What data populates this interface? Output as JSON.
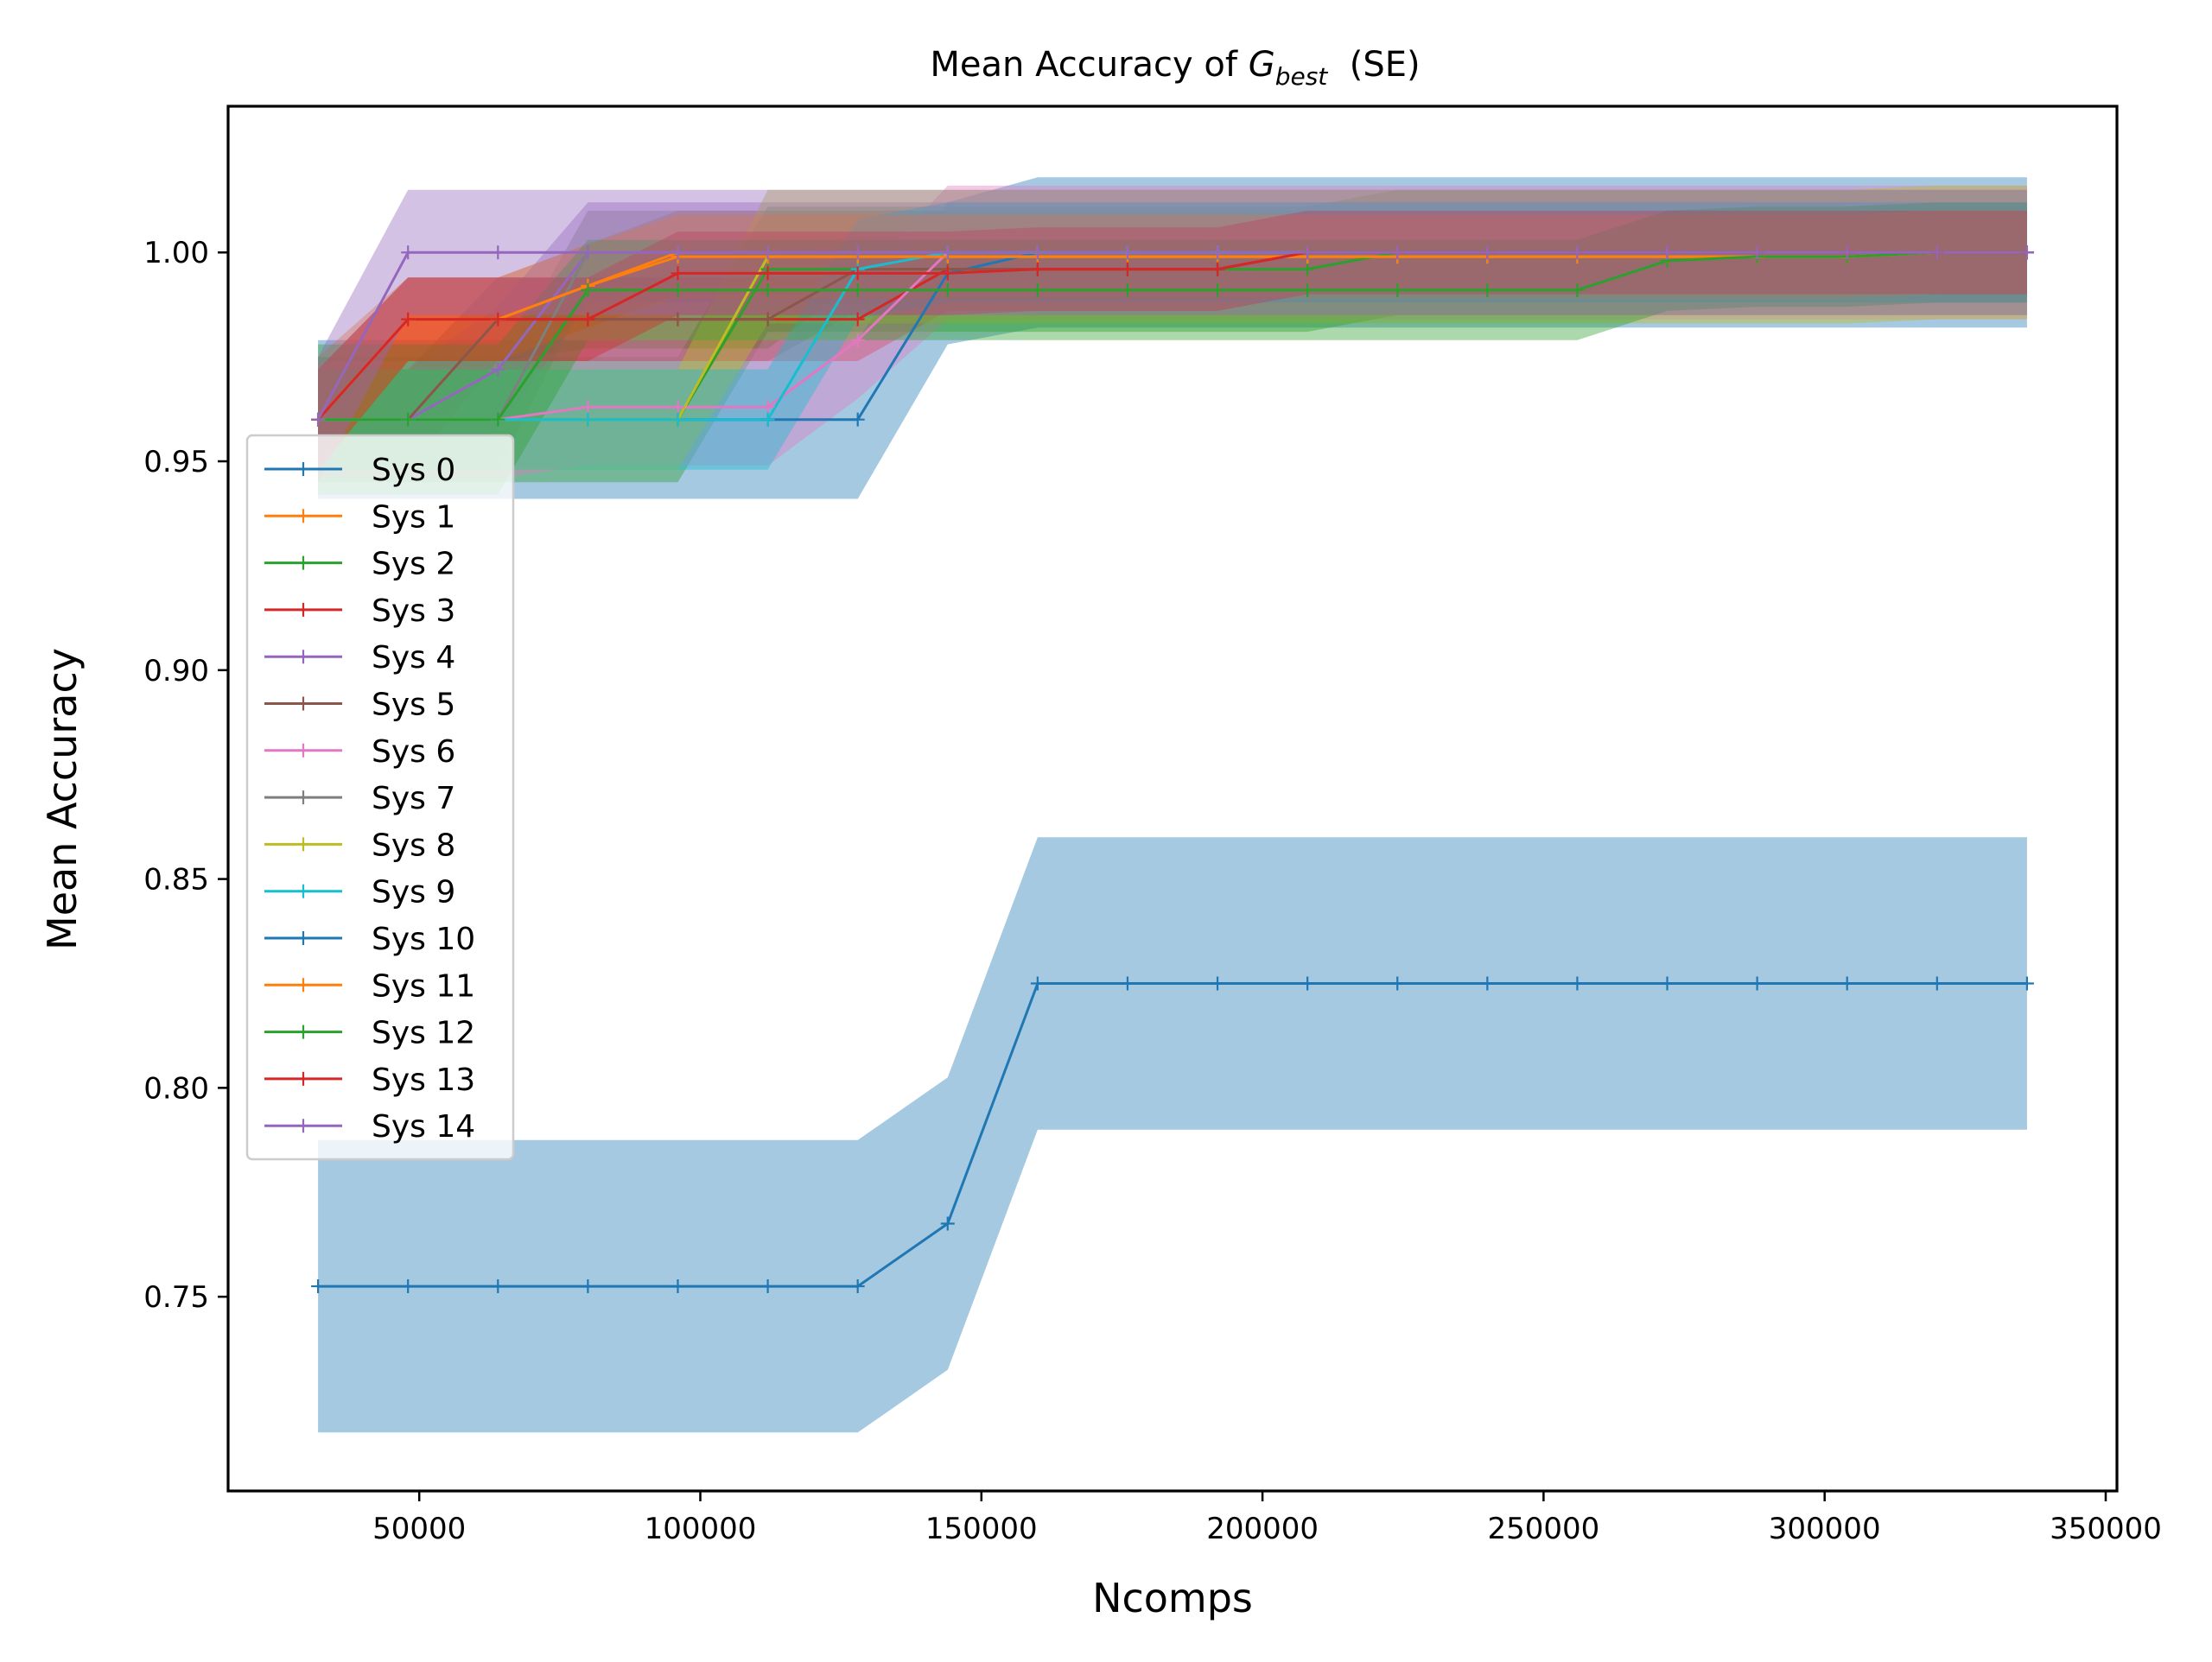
{
  "chart_data": {
    "type": "line",
    "title_main": "Mean Accuracy of ",
    "title_g": "G",
    "title_sub": "best",
    "title_tail": "  (SE)",
    "xlabel": "Ncomps",
    "ylabel": "Mean Accuracy",
    "xlim": [
      16000,
      352000
    ],
    "ylim": [
      0.7035,
      1.035
    ],
    "xticks": [
      50000,
      100000,
      150000,
      200000,
      250000,
      300000,
      350000
    ],
    "xtick_labels": [
      "50000",
      "100000",
      "150000",
      "200000",
      "250000",
      "300000",
      "350000"
    ],
    "yticks": [
      0.75,
      0.8,
      0.85,
      0.9,
      0.95,
      1.0
    ],
    "ytick_labels": [
      "0.75",
      "0.80",
      "0.85",
      "0.90",
      "0.95",
      "1.00"
    ],
    "grid": false,
    "legend_position": "center-left",
    "x": [
      32000,
      48000,
      64000,
      80000,
      96000,
      112000,
      128000,
      144000,
      160000,
      176000,
      192000,
      208000,
      224000,
      240000,
      256000,
      272000,
      288000,
      304000,
      320000,
      336000
    ],
    "series": [
      {
        "name": "Sys 0",
        "color": "#1f77b4",
        "values": [
          0.96,
          0.96,
          0.96,
          0.96,
          0.96,
          0.96,
          0.96,
          0.995,
          1.0,
          1.0,
          1.0,
          1.0,
          1.0,
          1.0,
          1.0,
          1.0,
          1.0,
          1.0,
          1.0,
          1.0
        ],
        "err": [
          0.019,
          0.019,
          0.019,
          0.019,
          0.019,
          0.019,
          0.019,
          0.017,
          0.018,
          0.018,
          0.018,
          0.018,
          0.018,
          0.018,
          0.018,
          0.018,
          0.018,
          0.018,
          0.018,
          0.018
        ]
      },
      {
        "name": "Sys 1",
        "color": "#ff7f0e",
        "values": [
          0.96,
          0.984,
          0.984,
          0.992,
          1.0,
          1.0,
          1.0,
          1.0,
          1.0,
          1.0,
          1.0,
          1.0,
          1.0,
          1.0,
          1.0,
          1.0,
          1.0,
          1.0,
          1.0,
          1.0
        ],
        "err": [
          0.015,
          0.01,
          0.01,
          0.01,
          0.01,
          0.01,
          0.01,
          0.01,
          0.01,
          0.01,
          0.01,
          0.01,
          0.01,
          0.01,
          0.01,
          0.01,
          0.01,
          0.01,
          0.01,
          0.01
        ]
      },
      {
        "name": "Sys 2",
        "color": "#2ca02c",
        "values": [
          0.96,
          0.96,
          0.96,
          0.96,
          0.96,
          0.996,
          0.996,
          0.996,
          0.996,
          0.996,
          0.996,
          0.996,
          1.0,
          1.0,
          1.0,
          1.0,
          1.0,
          1.0,
          1.0,
          1.0
        ],
        "err": [
          0.015,
          0.015,
          0.015,
          0.015,
          0.015,
          0.015,
          0.015,
          0.015,
          0.015,
          0.015,
          0.015,
          0.015,
          0.015,
          0.015,
          0.015,
          0.015,
          0.015,
          0.015,
          0.015,
          0.015
        ]
      },
      {
        "name": "Sys 3",
        "color": "#d62728",
        "values": [
          0.96,
          0.984,
          0.984,
          0.984,
          0.984,
          0.984,
          0.984,
          0.996,
          0.996,
          0.996,
          0.996,
          1.0,
          1.0,
          1.0,
          1.0,
          1.0,
          1.0,
          1.0,
          1.0,
          1.0
        ],
        "err": [
          0.012,
          0.01,
          0.01,
          0.01,
          0.01,
          0.01,
          0.01,
          0.01,
          0.01,
          0.01,
          0.01,
          0.01,
          0.01,
          0.01,
          0.01,
          0.01,
          0.01,
          0.01,
          0.01,
          0.01
        ]
      },
      {
        "name": "Sys 4",
        "color": "#9467bd",
        "values": [
          0.96,
          0.96,
          0.972,
          1.0,
          1.0,
          1.0,
          1.0,
          1.0,
          1.0,
          1.0,
          1.0,
          1.0,
          1.0,
          1.0,
          1.0,
          1.0,
          1.0,
          1.0,
          1.0,
          1.0
        ],
        "err": [
          0.012,
          0.012,
          0.015,
          0.012,
          0.012,
          0.012,
          0.012,
          0.012,
          0.012,
          0.012,
          0.012,
          0.012,
          0.012,
          0.012,
          0.012,
          0.012,
          0.012,
          0.012,
          0.012,
          0.012
        ]
      },
      {
        "name": "Sys 5",
        "color": "#8c564b",
        "values": [
          0.96,
          0.96,
          0.984,
          0.984,
          0.984,
          0.984,
          0.996,
          0.996,
          0.996,
          0.996,
          0.996,
          1.0,
          1.0,
          1.0,
          1.0,
          1.0,
          1.0,
          1.0,
          1.0,
          1.0
        ],
        "err": [
          0.012,
          0.012,
          0.01,
          0.01,
          0.01,
          0.01,
          0.01,
          0.01,
          0.01,
          0.01,
          0.01,
          0.01,
          0.01,
          0.01,
          0.01,
          0.01,
          0.01,
          0.01,
          0.01,
          0.01
        ]
      },
      {
        "name": "Sys 6",
        "color": "#e377c2",
        "values": [
          0.96,
          0.96,
          0.96,
          0.963,
          0.963,
          0.963,
          0.979,
          1.0,
          1.0,
          1.0,
          1.0,
          1.0,
          1.0,
          1.0,
          1.0,
          1.0,
          1.0,
          1.0,
          1.0,
          1.0
        ],
        "err": [
          0.014,
          0.014,
          0.014,
          0.014,
          0.014,
          0.014,
          0.014,
          0.016,
          0.016,
          0.016,
          0.016,
          0.016,
          0.016,
          0.016,
          0.016,
          0.016,
          0.016,
          0.016,
          0.016,
          0.016
        ]
      },
      {
        "name": "Sys 7",
        "color": "#7f7f7f",
        "values": [
          0.96,
          0.96,
          0.96,
          1.0,
          1.0,
          1.0,
          1.0,
          1.0,
          1.0,
          1.0,
          1.0,
          1.0,
          1.0,
          1.0,
          1.0,
          1.0,
          1.0,
          1.0,
          1.0,
          1.0
        ],
        "err": [
          0.012,
          0.012,
          0.012,
          0.01,
          0.01,
          0.01,
          0.01,
          0.01,
          0.01,
          0.01,
          0.01,
          0.01,
          0.01,
          0.01,
          0.01,
          0.01,
          0.01,
          0.01,
          0.01,
          0.01
        ]
      },
      {
        "name": "Sys 8",
        "color": "#bcbd22",
        "values": [
          0.96,
          0.96,
          0.96,
          0.96,
          0.96,
          0.999,
          0.999,
          0.999,
          0.999,
          0.999,
          0.999,
          0.999,
          0.999,
          0.999,
          0.999,
          0.999,
          0.999,
          0.999,
          1.0,
          1.0
        ],
        "err": [
          0.012,
          0.012,
          0.012,
          0.012,
          0.012,
          0.016,
          0.016,
          0.016,
          0.016,
          0.016,
          0.016,
          0.016,
          0.016,
          0.016,
          0.016,
          0.016,
          0.016,
          0.016,
          0.016,
          0.016
        ]
      },
      {
        "name": "Sys 9",
        "color": "#17becf",
        "values": [
          0.96,
          0.96,
          0.96,
          0.96,
          0.96,
          0.96,
          0.996,
          1.0,
          1.0,
          1.0,
          1.0,
          1.0,
          1.0,
          1.0,
          1.0,
          1.0,
          1.0,
          1.0,
          1.0,
          1.0
        ],
        "err": [
          0.012,
          0.012,
          0.012,
          0.012,
          0.012,
          0.012,
          0.012,
          0.012,
          0.012,
          0.012,
          0.012,
          0.012,
          0.012,
          0.012,
          0.012,
          0.012,
          0.012,
          0.012,
          0.012,
          0.012
        ]
      },
      {
        "name": "Sys 10",
        "color": "#1f77b4",
        "values": [
          0.7525,
          0.7525,
          0.7525,
          0.7525,
          0.7525,
          0.7525,
          0.7525,
          0.7675,
          0.825,
          0.825,
          0.825,
          0.825,
          0.825,
          0.825,
          0.825,
          0.825,
          0.825,
          0.825,
          0.825,
          0.825
        ],
        "err": [
          0.035,
          0.035,
          0.035,
          0.035,
          0.035,
          0.035,
          0.035,
          0.035,
          0.035,
          0.035,
          0.035,
          0.035,
          0.035,
          0.035,
          0.035,
          0.035,
          0.035,
          0.035,
          0.035,
          0.035
        ]
      },
      {
        "name": "Sys 11",
        "color": "#ff7f0e",
        "values": [
          0.96,
          0.984,
          0.984,
          0.992,
          0.999,
          0.999,
          0.999,
          0.999,
          0.999,
          0.999,
          0.999,
          0.999,
          0.999,
          0.999,
          0.999,
          0.999,
          0.999,
          0.999,
          1.0,
          1.0
        ],
        "err": [
          0.012,
          0.01,
          0.01,
          0.01,
          0.01,
          0.01,
          0.01,
          0.01,
          0.01,
          0.01,
          0.01,
          0.01,
          0.01,
          0.01,
          0.01,
          0.01,
          0.01,
          0.01,
          0.01,
          0.01
        ]
      },
      {
        "name": "Sys 12",
        "color": "#2ca02c",
        "values": [
          0.96,
          0.96,
          0.96,
          0.991,
          0.991,
          0.991,
          0.991,
          0.991,
          0.991,
          0.991,
          0.991,
          0.991,
          0.991,
          0.991,
          0.991,
          0.998,
          0.999,
          0.999,
          1.0,
          1.0
        ],
        "err": [
          0.018,
          0.018,
          0.018,
          0.012,
          0.012,
          0.012,
          0.012,
          0.012,
          0.012,
          0.012,
          0.012,
          0.012,
          0.012,
          0.012,
          0.012,
          0.012,
          0.012,
          0.012,
          0.012,
          0.012
        ]
      },
      {
        "name": "Sys 13",
        "color": "#d62728",
        "values": [
          0.96,
          0.984,
          0.984,
          0.984,
          0.995,
          0.995,
          0.995,
          0.995,
          0.996,
          0.996,
          0.996,
          1.0,
          1.0,
          1.0,
          1.0,
          1.0,
          1.0,
          1.0,
          1.0,
          1.0
        ],
        "err": [
          0.012,
          0.01,
          0.01,
          0.01,
          0.01,
          0.01,
          0.01,
          0.01,
          0.01,
          0.01,
          0.01,
          0.01,
          0.01,
          0.01,
          0.01,
          0.01,
          0.01,
          0.01,
          0.01,
          0.01
        ]
      },
      {
        "name": "Sys 14",
        "color": "#9467bd",
        "values": [
          0.96,
          1.0,
          1.0,
          1.0,
          1.0,
          1.0,
          1.0,
          1.0,
          1.0,
          1.0,
          1.0,
          1.0,
          1.0,
          1.0,
          1.0,
          1.0,
          1.0,
          1.0,
          1.0,
          1.0
        ],
        "err": [
          0.015,
          0.015,
          0.015,
          0.015,
          0.015,
          0.015,
          0.015,
          0.015,
          0.015,
          0.015,
          0.015,
          0.015,
          0.015,
          0.015,
          0.015,
          0.015,
          0.015,
          0.015,
          0.015,
          0.015
        ]
      }
    ]
  }
}
